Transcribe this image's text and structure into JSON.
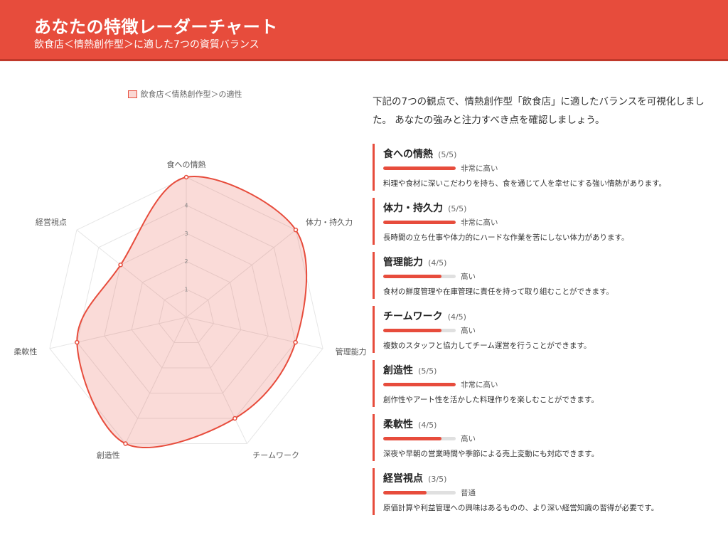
{
  "header": {
    "title": "あなたの特徴レーダーチャート",
    "subtitle": "飲食店＜情熱創作型＞に適した7つの資質バランス"
  },
  "intro": "下記の7つの観点で、情熱創作型「飲食店」に適したバランスを可視化しました。 あなたの強みと注力すべき点を確認しましょう。",
  "colors": {
    "accent": "#e74c3c",
    "track": "#e0e0e0",
    "fill": "rgba(231,76,60,0.2)"
  },
  "chart_data": {
    "type": "radar",
    "legend": "飲食店＜情熱創作型＞の適性",
    "legend_position": "top",
    "categories": [
      "食への情熱",
      "体力・持久力",
      "管理能力",
      "チームワーク",
      "創造性",
      "柔軟性",
      "経営視点"
    ],
    "series": [
      {
        "name": "飲食店＜情熱創作型＞の適性",
        "values": [
          5,
          5,
          4,
          4,
          5,
          4,
          3
        ]
      }
    ],
    "r_range": [
      0,
      5
    ],
    "tick_labels": [
      "1",
      "2",
      "3",
      "4"
    ],
    "grid": true
  },
  "items": [
    {
      "name": "食への情熱",
      "score": "(5/5)",
      "value": 5,
      "max": 5,
      "level": "非常に高い",
      "desc": "料理や食材に深いこだわりを持ち、食を通じて人を幸せにする強い情熱があります。"
    },
    {
      "name": "体力・持久力",
      "score": "(5/5)",
      "value": 5,
      "max": 5,
      "level": "非常に高い",
      "desc": "長時間の立ち仕事や体力的にハードな作業を苦にしない体力があります。"
    },
    {
      "name": "管理能力",
      "score": "(4/5)",
      "value": 4,
      "max": 5,
      "level": "高い",
      "desc": "食材の鮮度管理や在庫管理に責任を持って取り組むことができます。"
    },
    {
      "name": "チームワーク",
      "score": "(4/5)",
      "value": 4,
      "max": 5,
      "level": "高い",
      "desc": "複数のスタッフと協力してチーム運営を行うことができます。"
    },
    {
      "name": "創造性",
      "score": "(5/5)",
      "value": 5,
      "max": 5,
      "level": "非常に高い",
      "desc": "創作性やアート性を活かした料理作りを楽しむことができます。"
    },
    {
      "name": "柔軟性",
      "score": "(4/5)",
      "value": 4,
      "max": 5,
      "level": "高い",
      "desc": "深夜や早朝の営業時間や季節による売上変動にも対応できます。"
    },
    {
      "name": "経営視点",
      "score": "(3/5)",
      "value": 3,
      "max": 5,
      "level": "普通",
      "desc": "原価計算や利益管理への興味はあるものの、より深い経営知識の習得が必要です。"
    }
  ]
}
